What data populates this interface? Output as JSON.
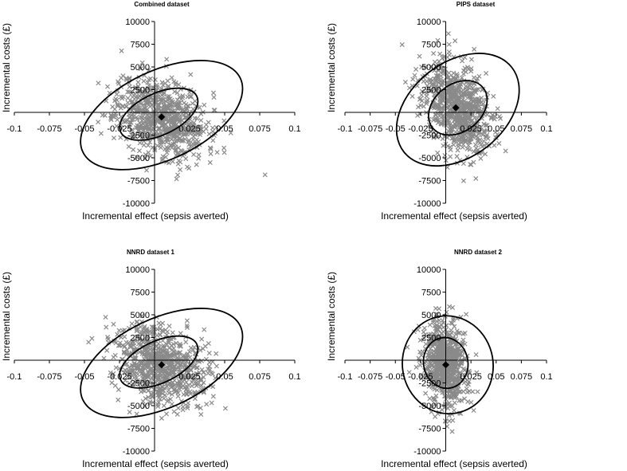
{
  "chart_data": [
    {
      "type": "scatter",
      "title": "Combined dataset",
      "xlabel": "Incremental effect (sepsis averted)",
      "ylabel": "Incremental costs (£)",
      "xlim": [
        -0.1,
        0.1
      ],
      "ylim": [
        -10000,
        10000
      ],
      "x_ticks": [
        "-0.1",
        "-0.075",
        "-0.05",
        "-0.025",
        "0.025",
        "0.05",
        "0.075",
        "0.1"
      ],
      "y_ticks": [
        "10000",
        "7500",
        "5000",
        "2500",
        "-2500",
        "-5000",
        "-7500",
        "-10000"
      ],
      "mean": {
        "x": 0.005,
        "y": -500
      },
      "spread": {
        "x": 0.016,
        "y": 2200,
        "corr": -0.3,
        "n": 750,
        "seed": 11
      },
      "ellipses": [
        {
          "label": "inner",
          "cx": 0.003,
          "cy": -200,
          "rx": 0.03,
          "ry": 2300,
          "angle_deg": -25
        },
        {
          "label": "outer",
          "cx": 0.005,
          "cy": -300,
          "rx": 0.062,
          "ry": 4900,
          "angle_deg": -25
        }
      ]
    },
    {
      "type": "scatter",
      "title": "PIPS dataset",
      "xlabel": "Incremental effect (sepsis averted)",
      "ylabel": "Incremental costs (£)",
      "xlim": [
        -0.1,
        0.1
      ],
      "ylim": [
        -10000,
        10000
      ],
      "x_ticks": [
        "-0.1",
        "-0.075",
        "-0.05",
        "-0.025",
        "0.025",
        "0.05",
        "0.075",
        "0.1"
      ],
      "y_ticks": [
        "10000",
        "7500",
        "5000",
        "2500",
        "-2500",
        "-5000",
        "-7500",
        "-10000"
      ],
      "mean": {
        "x": 0.01,
        "y": 500
      },
      "spread": {
        "x": 0.017,
        "y": 2600,
        "corr": -0.4,
        "n": 750,
        "seed": 23
      },
      "ellipses": [
        {
          "label": "inner",
          "cx": 0.012,
          "cy": 500,
          "rx": 0.032,
          "ry": 2600,
          "angle_deg": -38
        },
        {
          "label": "outer",
          "cx": 0.012,
          "cy": 300,
          "rx": 0.068,
          "ry": 5200,
          "angle_deg": -38
        }
      ]
    },
    {
      "type": "scatter",
      "title": "NNRD dataset 1",
      "xlabel": "Incremental effect (sepsis averted)",
      "ylabel": "Incremental costs (£)",
      "xlim": [
        -0.1,
        0.1
      ],
      "ylim": [
        -10000,
        10000
      ],
      "x_ticks": [
        "-0.1",
        "-0.075",
        "-0.05",
        "-0.025",
        "0.025",
        "0.05",
        "0.075",
        "0.1"
      ],
      "y_ticks": [
        "10000",
        "7500",
        "5000",
        "2500",
        "-2500",
        "-5000",
        "-7500",
        "-10000"
      ],
      "mean": {
        "x": 0.005,
        "y": -500
      },
      "spread": {
        "x": 0.016,
        "y": 2200,
        "corr": -0.3,
        "n": 750,
        "seed": 37
      },
      "ellipses": [
        {
          "label": "inner",
          "cx": 0.003,
          "cy": -200,
          "rx": 0.03,
          "ry": 2300,
          "angle_deg": -25
        },
        {
          "label": "outer",
          "cx": 0.005,
          "cy": -300,
          "rx": 0.062,
          "ry": 4900,
          "angle_deg": -25
        }
      ]
    },
    {
      "type": "scatter",
      "title": "NNRD dataset 2",
      "xlabel": "Incremental effect (sepsis averted)",
      "ylabel": "Incremental costs (£)",
      "xlim": [
        -0.1,
        0.1
      ],
      "ylim": [
        -10000,
        10000
      ],
      "x_ticks": [
        "-0.1",
        "-0.075",
        "-0.05",
        "-0.025",
        "0.025",
        "0.05",
        "0.075",
        "0.1"
      ],
      "y_ticks": [
        "10000",
        "7500",
        "5000",
        "2500",
        "-2500",
        "-5000",
        "-7500",
        "-10000"
      ],
      "mean": {
        "x": 0.0,
        "y": -500
      },
      "spread": {
        "x": 0.011,
        "y": 2400,
        "corr": -0.15,
        "n": 750,
        "seed": 53
      },
      "ellipses": [
        {
          "label": "inner",
          "cx": 0.0,
          "cy": -300,
          "rx": 0.022,
          "ry": 2800,
          "angle_deg": -10
        },
        {
          "label": "outer",
          "cx": 0.002,
          "cy": -500,
          "rx": 0.045,
          "ry": 5400,
          "angle_deg": -10
        }
      ]
    }
  ]
}
